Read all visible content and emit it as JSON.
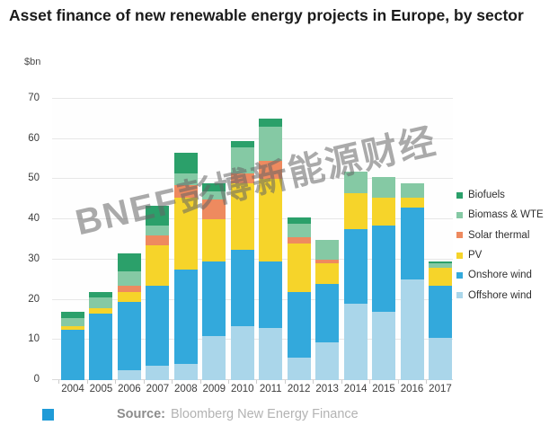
{
  "page": {
    "title": "Asset finance of new renewable energy projects in Europe, by sector",
    "watermark": "BNEF彭博新能源财经",
    "source_label": "Source:",
    "source_text": "Bloomberg New Energy Finance"
  },
  "colors": {
    "biofuels": "#2BA06A",
    "biomass_wte": "#85C9A4",
    "solar_thermal": "#EE8A5F",
    "pv": "#F6D42A",
    "onshore_wind": "#33A9DC",
    "offshore_wind": "#AAD6EA",
    "source_icon": "#1F9BD7",
    "gridline": "#e7e7e7"
  },
  "chart_data": {
    "type": "bar",
    "stacked": true,
    "title": "Asset finance of new renewable energy projects in Europe, by sector",
    "ylabel": "$bn",
    "xlabel": "",
    "ylim": [
      0,
      70
    ],
    "yticks": [
      0,
      10,
      20,
      30,
      40,
      50,
      60,
      70
    ],
    "grid": "horizontal",
    "legend_position": "right",
    "categories": [
      "2004",
      "2005",
      "2006",
      "2007",
      "2008",
      "2009",
      "2010",
      "2011",
      "2012",
      "2013",
      "2014",
      "2015",
      "2016",
      "2017"
    ],
    "series": [
      {
        "name": "Offshore wind",
        "color": "#AAD6EA",
        "values": [
          0,
          0,
          2.5,
          3.5,
          4,
          11,
          13.5,
          13,
          5.5,
          9.5,
          19,
          17,
          25,
          10.5
        ]
      },
      {
        "name": "Onshore wind",
        "color": "#33A9DC",
        "values": [
          12.5,
          16.5,
          17,
          20,
          23.5,
          18.5,
          19,
          16.5,
          16.5,
          14.5,
          18.5,
          21.5,
          18,
          13
        ]
      },
      {
        "name": "PV",
        "color": "#F6D42A",
        "values": [
          1,
          1.5,
          2.5,
          10,
          18,
          10.5,
          16.5,
          20.5,
          12,
          5,
          9,
          7,
          2.5,
          4.5
        ]
      },
      {
        "name": "Solar thermal",
        "color": "#EE8A5F",
        "values": [
          0,
          0,
          1.5,
          2.5,
          3,
          5,
          2.5,
          4.5,
          1.5,
          1,
          0,
          0,
          0,
          0
        ]
      },
      {
        "name": "Biomass & WTE",
        "color": "#85C9A4",
        "values": [
          2,
          2.5,
          3.5,
          2.5,
          3,
          2,
          6.5,
          8.5,
          3.5,
          5,
          5.5,
          5,
          3.5,
          1
        ]
      },
      {
        "name": "Biofuels",
        "color": "#2BA06A",
        "values": [
          1.5,
          1.5,
          4.5,
          5,
          5,
          2,
          1.5,
          2,
          1.5,
          0,
          0,
          0,
          0,
          0.5
        ]
      }
    ],
    "totals": [
      17,
      22,
      31.5,
      43.5,
      56.5,
      49,
      59.5,
      65,
      40.5,
      35,
      52,
      50.5,
      49,
      29.5
    ],
    "legend": [
      {
        "label": "Biofuels",
        "color": "#2BA06A"
      },
      {
        "label": "Biomass & WTE",
        "color": "#85C9A4"
      },
      {
        "label": "Solar thermal",
        "color": "#EE8A5F"
      },
      {
        "label": "PV",
        "color": "#F6D42A"
      },
      {
        "label": "Onshore wind",
        "color": "#33A9DC"
      },
      {
        "label": "Offshore wind",
        "color": "#AAD6EA"
      }
    ]
  }
}
